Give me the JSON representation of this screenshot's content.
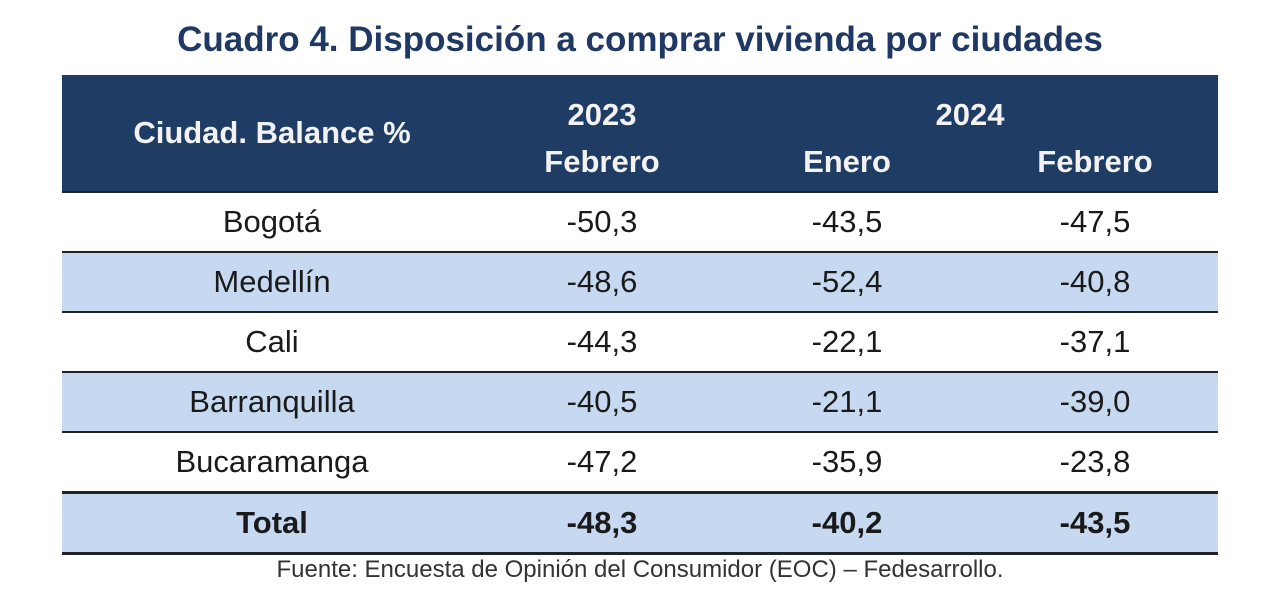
{
  "title": "Cuadro 4. Disposición a comprar vivienda por ciudades",
  "chart_data": {
    "type": "table",
    "title": "Cuadro 4. Disposición a comprar vivienda por ciudades",
    "row_header": "Ciudad. Balance %",
    "year_headers": [
      "2023",
      "2024"
    ],
    "columns": [
      "Febrero",
      "Enero",
      "Febrero"
    ],
    "rows": [
      {
        "city": "Bogotá",
        "values": [
          "-50,3",
          "-43,5",
          "-47,5"
        ]
      },
      {
        "city": "Medellín",
        "values": [
          "-48,6",
          "-52,4",
          "-40,8"
        ]
      },
      {
        "city": "Cali",
        "values": [
          "-44,3",
          "-22,1",
          "-37,1"
        ]
      },
      {
        "city": "Barranquilla",
        "values": [
          "-40,5",
          "-21,1",
          "-39,0"
        ]
      },
      {
        "city": "Bucaramanga",
        "values": [
          "-47,2",
          "-35,9",
          "-23,8"
        ]
      },
      {
        "city": "Total",
        "values": [
          "-48,3",
          "-40,2",
          "-43,5"
        ]
      }
    ],
    "source": "Fuente: Encuesta de Opinión del Consumidor (EOC) – Fedesarrollo."
  },
  "colors": {
    "header_bg": "#1f3c64",
    "alt_row_bg": "#c6d9f0",
    "title": "#1f3864"
  }
}
